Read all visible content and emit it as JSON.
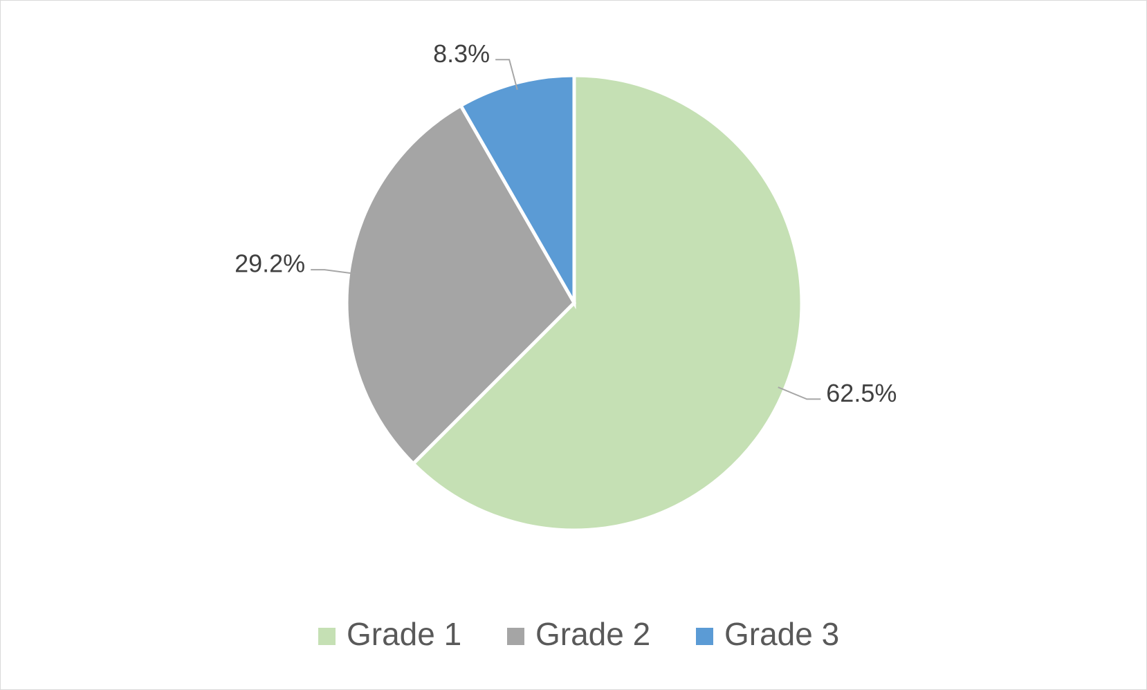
{
  "chart_data": {
    "type": "pie",
    "categories": [
      "Grade 1",
      "Grade 2",
      "Grade 3"
    ],
    "values": [
      62.5,
      29.2,
      8.3
    ],
    "value_labels": [
      "62.5%",
      "29.2%",
      "8.3%"
    ],
    "colors": [
      "#c5e0b4",
      "#a5a5a5",
      "#5b9bd5"
    ],
    "legend": "bottom"
  }
}
